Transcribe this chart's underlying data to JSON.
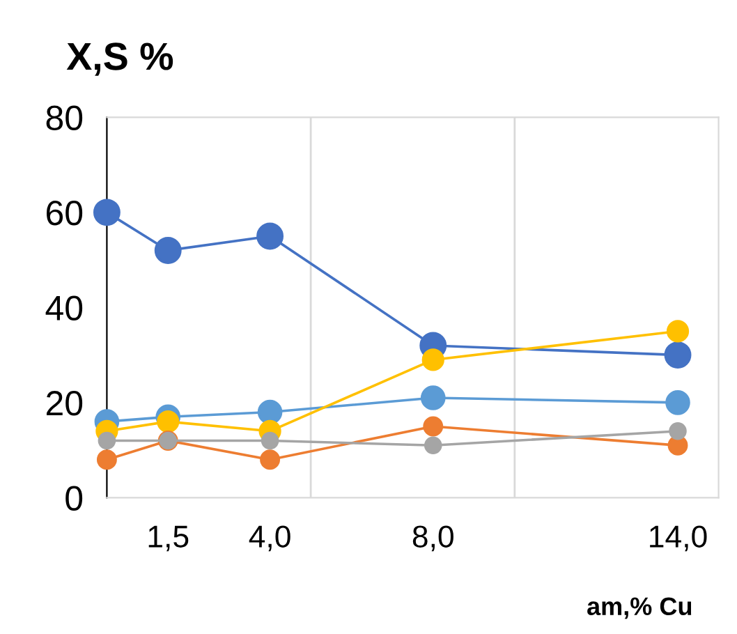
{
  "chart_data": {
    "type": "line",
    "title": "X,S %",
    "xlabel": "am,% Cu",
    "x": [
      0,
      1.5,
      4,
      8,
      14
    ],
    "xlim": [
      0,
      15
    ],
    "xticks": [
      {
        "value": 1.5,
        "label": "1,5"
      },
      {
        "value": 4,
        "label": "4,0"
      },
      {
        "value": 8,
        "label": "8,0"
      },
      {
        "value": 14,
        "label": "14,0"
      }
    ],
    "ylim": [
      0,
      80
    ],
    "yticks": [
      0,
      20,
      40,
      60,
      80
    ],
    "ref_lines": [
      {
        "axis": "x",
        "value": 5,
        "color": "#d9d9d9"
      },
      {
        "axis": "x",
        "value": 10,
        "color": "#d9d9d9"
      }
    ],
    "grid": false,
    "marker": "circle",
    "line_style": "solid",
    "series": [
      {
        "color": "#4472c4",
        "values": [
          60,
          52,
          55,
          32,
          30
        ]
      },
      {
        "color": "#5b9bd5",
        "values": [
          16,
          17,
          18,
          21,
          20
        ]
      },
      {
        "color": "#ffc000",
        "values": [
          14,
          16,
          14,
          29,
          35
        ]
      },
      {
        "color": "#ed7d31",
        "values": [
          8,
          12,
          8,
          15,
          11
        ]
      },
      {
        "color": "#a5a5a5",
        "values": [
          12,
          12,
          12,
          11,
          14
        ]
      }
    ]
  }
}
